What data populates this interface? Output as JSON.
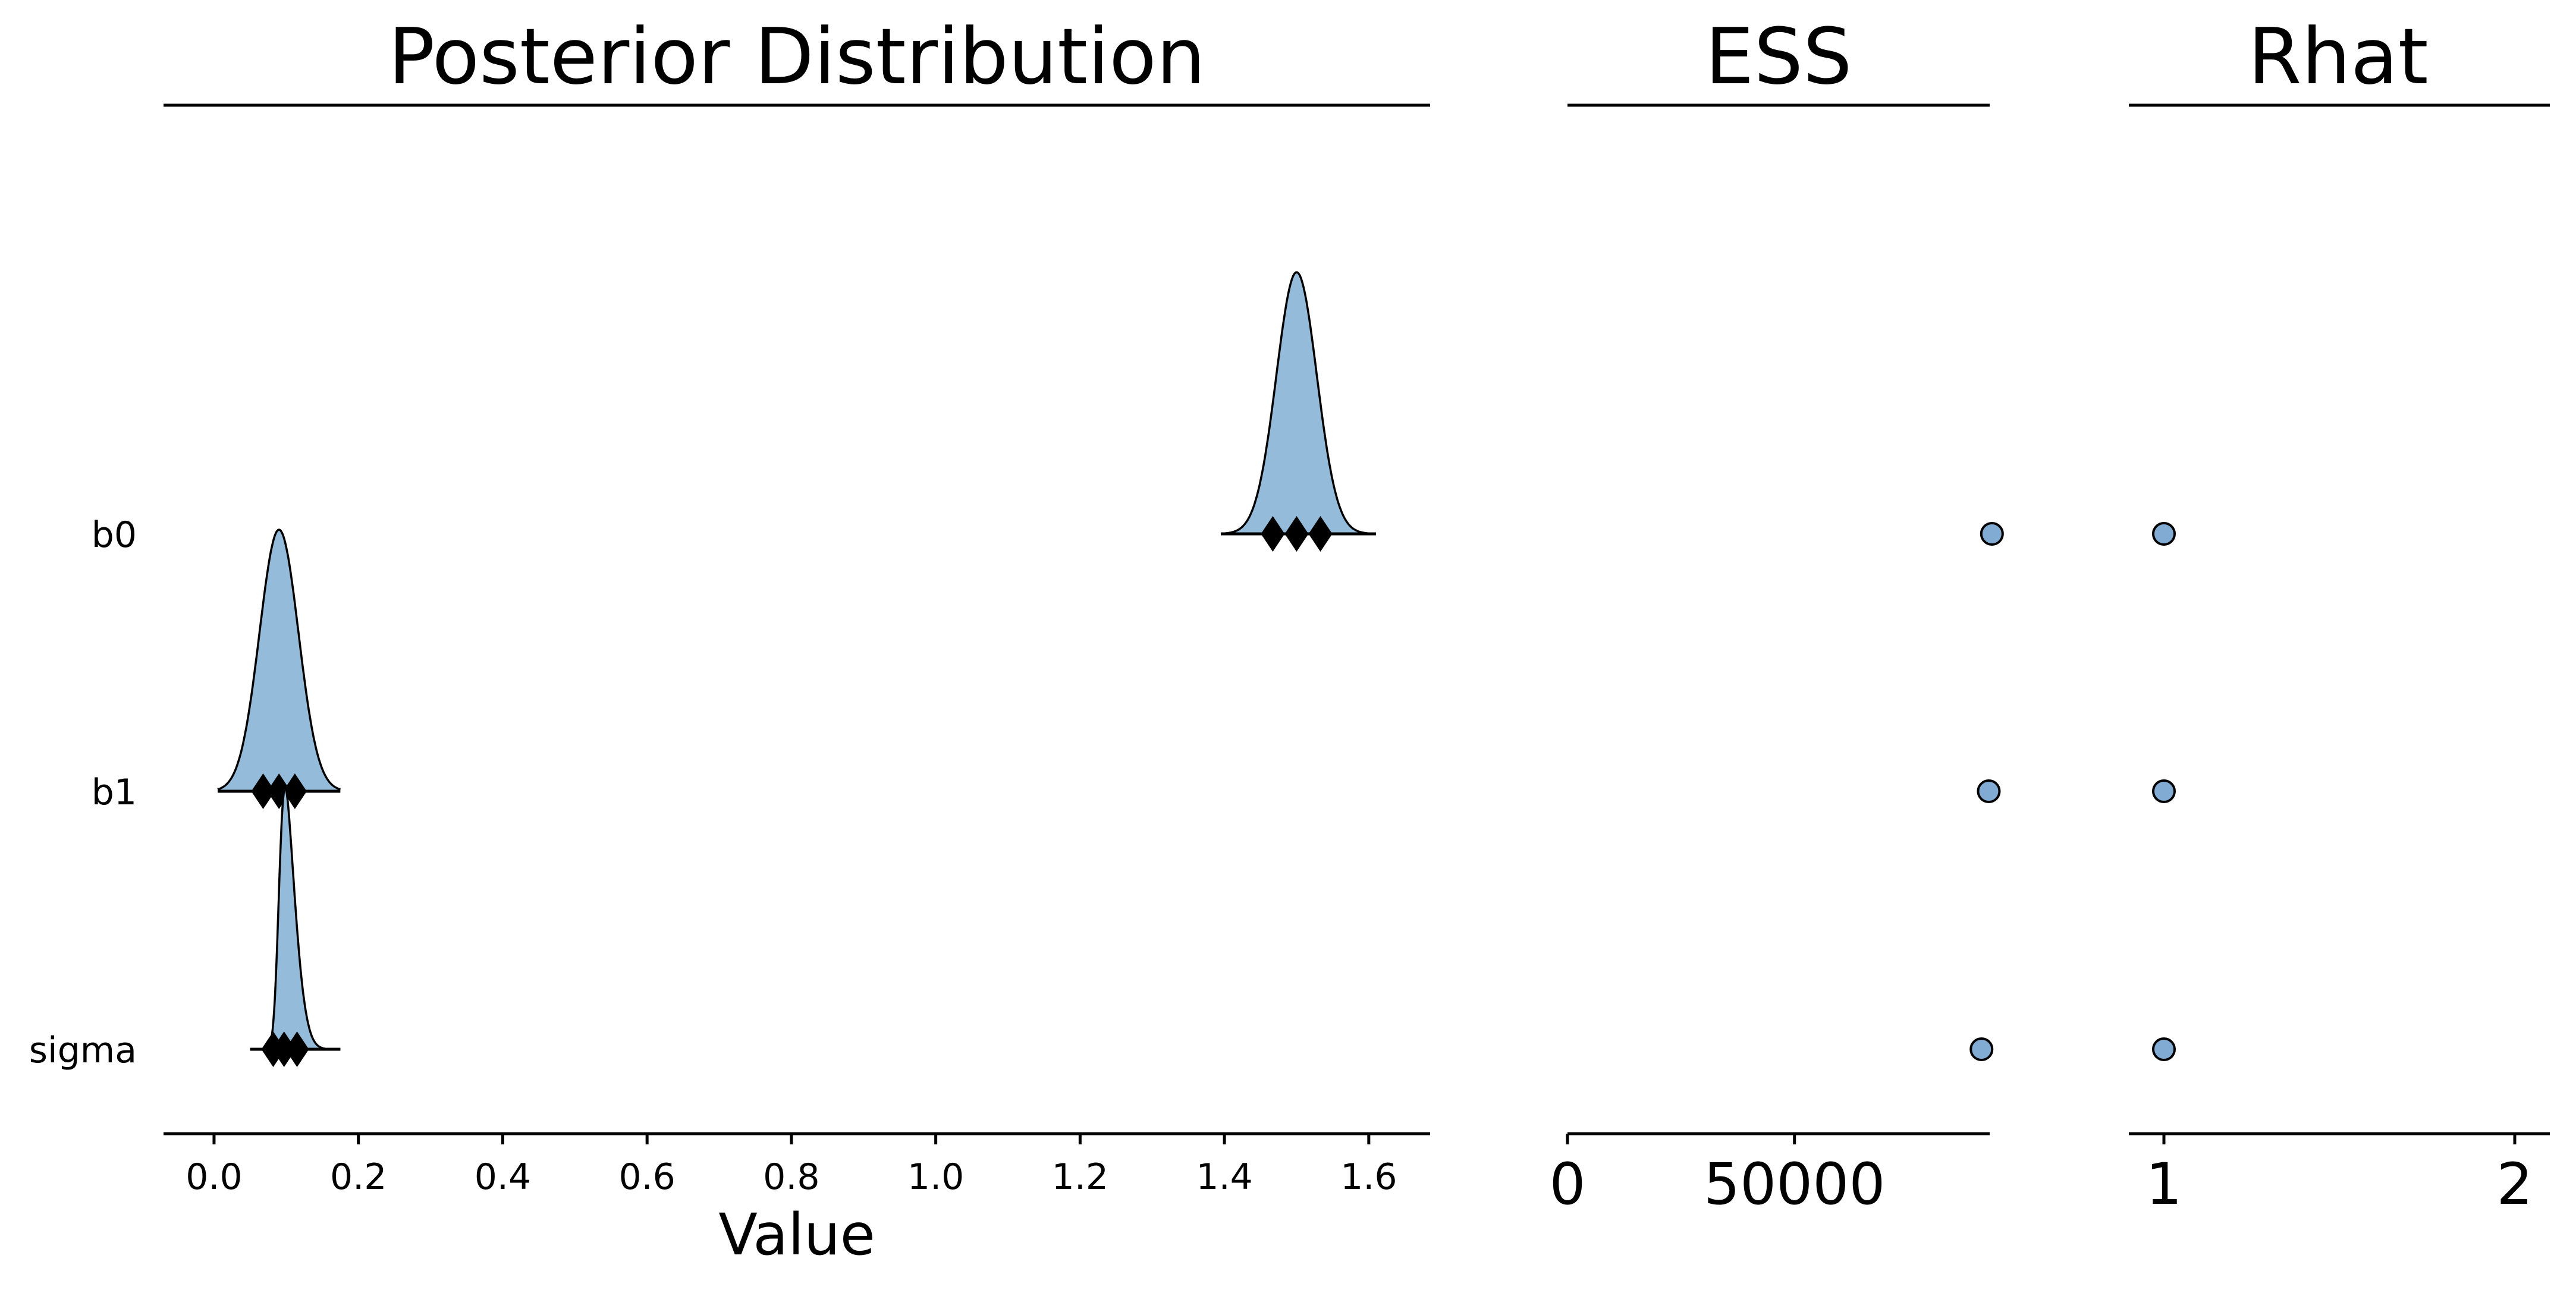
{
  "chart_data": {
    "type": "ridgeplot",
    "colors": {
      "fill": "#94bbd9",
      "dot": "#81abd2",
      "stroke": "#000000"
    },
    "panels": {
      "posterior": {
        "title": "Posterior Distribution",
        "xlabel": "Value",
        "xlim": [
          -0.07,
          1.685
        ],
        "xticks": [
          0.0,
          0.2,
          0.4,
          0.6,
          0.8,
          1.0,
          1.2,
          1.4,
          1.6
        ],
        "xtick_labels": [
          "0.0",
          "0.2",
          "0.4",
          "0.6",
          "0.8",
          "1.0",
          "1.2",
          "1.4",
          "1.6"
        ]
      },
      "ess": {
        "title": "ESS",
        "xlim": [
          0,
          93000
        ],
        "xticks": [
          0,
          50000
        ],
        "xtick_labels": [
          "0",
          "50000"
        ]
      },
      "rhat": {
        "title": "Rhat",
        "xlim": [
          0.9,
          2.1
        ],
        "xticks": [
          1,
          2
        ],
        "xtick_labels": [
          "1",
          "2"
        ]
      }
    },
    "parameters": [
      {
        "name": "b0",
        "mean": 1.5,
        "sd": 0.028,
        "hdi": [
          1.395,
          1.61
        ],
        "quartiles": [
          1.467,
          1.5,
          1.533
        ],
        "ess": 93500,
        "rhat": 1.0
      },
      {
        "name": "b1",
        "mean": 0.09,
        "sd": 0.027,
        "hdi": [
          0.005,
          0.175
        ],
        "quartiles": [
          0.068,
          0.09,
          0.112
        ],
        "ess": 92800,
        "rhat": 1.0
      },
      {
        "name": "sigma",
        "mean": 0.09,
        "sd": 0.018,
        "skew": 3.0,
        "hdi": [
          0.05,
          0.175
        ],
        "quartiles": [
          0.082,
          0.097,
          0.115
        ],
        "ess": 91200,
        "rhat": 1.0
      }
    ]
  }
}
